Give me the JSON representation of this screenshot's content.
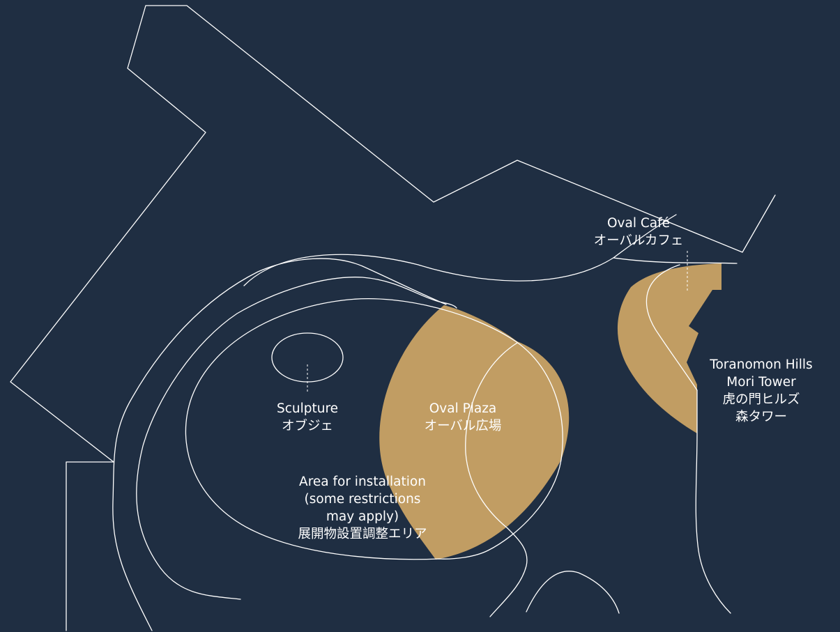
{
  "colors": {
    "background": "#1f2e42",
    "line": "#ffffff",
    "highlight": "#c19d63"
  },
  "labels": {
    "oval_cafe": {
      "en": "Oval Café",
      "ja": "オーバルカフェ"
    },
    "sculpture": {
      "en": "Sculpture",
      "ja": "オブジェ"
    },
    "oval_plaza": {
      "en": "Oval Plaza",
      "ja": "オーバル広場"
    },
    "installation_area": {
      "en_1": "Area for installation",
      "en_2": "(some restrictions",
      "en_3": "may apply)",
      "ja": "展開物設置調整エリア"
    },
    "tower": {
      "en_1": "Toranomon Hills",
      "en_2": "Mori Tower",
      "ja_1": "虎の門ヒルズ",
      "ja_2": "森タワー"
    }
  }
}
